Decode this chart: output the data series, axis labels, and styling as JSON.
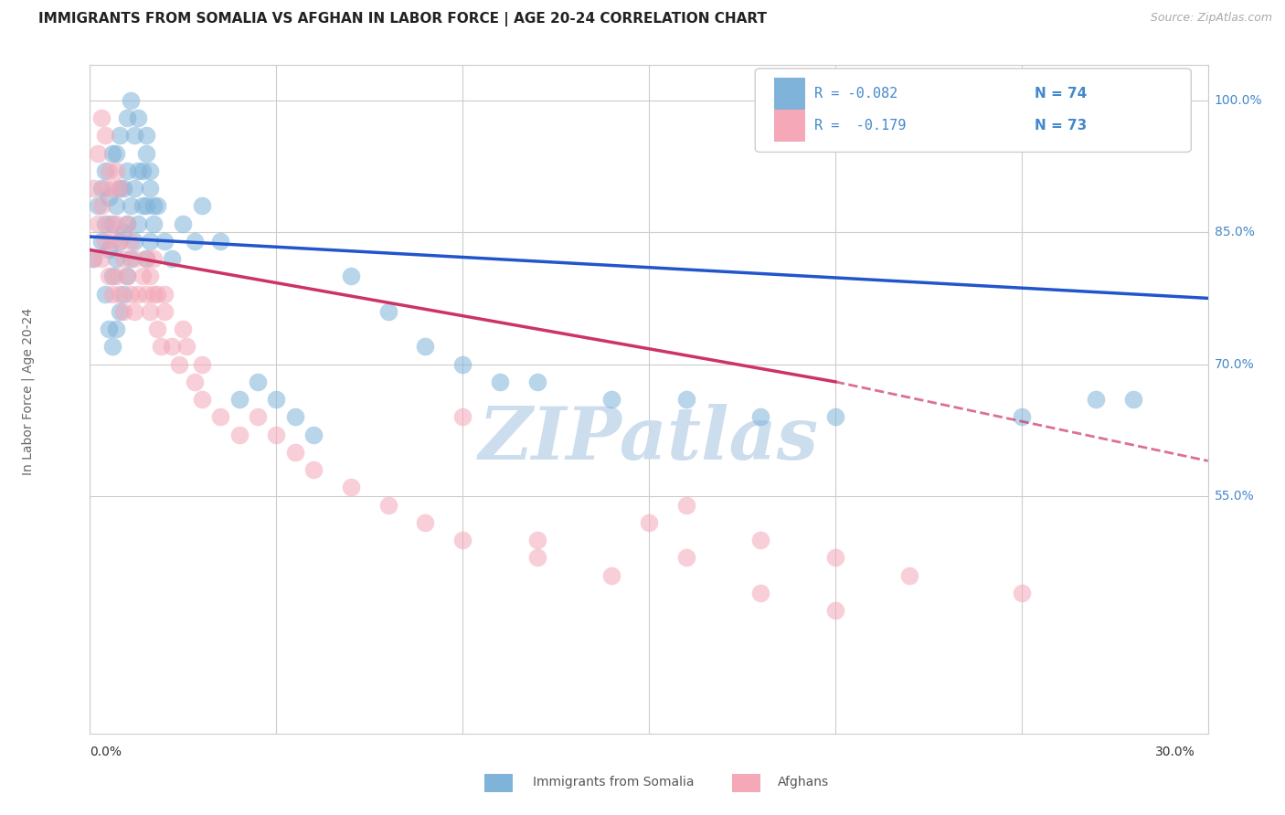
{
  "title": "IMMIGRANTS FROM SOMALIA VS AFGHAN IN LABOR FORCE | AGE 20-24 CORRELATION CHART",
  "source": "Source: ZipAtlas.com",
  "ylabel": "In Labor Force | Age 20-24",
  "legend_somalia_R": "R = -0.082",
  "legend_somalia_N": "N = 74",
  "legend_afghan_R": "R =  -0.179",
  "legend_afghan_N": "N = 73",
  "legend_somalia_label": "Immigrants from Somalia",
  "legend_afghan_label": "Afghans",
  "somalia_color": "#7fb3d9",
  "afghan_color": "#f4a8b8",
  "trend_somalia_color": "#2255cc",
  "trend_afghan_color": "#cc3366",
  "watermark_color": "#ccdded",
  "background_color": "#ffffff",
  "grid_color": "#cccccc",
  "right_axis_color": "#4488cc",
  "xmin": 0.0,
  "xmax": 0.3,
  "ymin": 0.28,
  "ymax": 1.04,
  "somalia_x": [
    0.001,
    0.002,
    0.003,
    0.003,
    0.004,
    0.004,
    0.004,
    0.005,
    0.005,
    0.005,
    0.006,
    0.006,
    0.006,
    0.006,
    0.007,
    0.007,
    0.007,
    0.007,
    0.008,
    0.008,
    0.008,
    0.008,
    0.009,
    0.009,
    0.009,
    0.01,
    0.01,
    0.01,
    0.011,
    0.011,
    0.012,
    0.012,
    0.013,
    0.013,
    0.014,
    0.015,
    0.015,
    0.015,
    0.016,
    0.016,
    0.017,
    0.018,
    0.02,
    0.022,
    0.025,
    0.028,
    0.03,
    0.035,
    0.04,
    0.045,
    0.05,
    0.055,
    0.06,
    0.07,
    0.08,
    0.09,
    0.1,
    0.11,
    0.12,
    0.14,
    0.16,
    0.18,
    0.2,
    0.25,
    0.27,
    0.01,
    0.011,
    0.012,
    0.013,
    0.014,
    0.015,
    0.016,
    0.017,
    0.28
  ],
  "somalia_y": [
    0.82,
    0.88,
    0.84,
    0.9,
    0.78,
    0.86,
    0.92,
    0.74,
    0.83,
    0.89,
    0.72,
    0.8,
    0.86,
    0.94,
    0.74,
    0.82,
    0.88,
    0.94,
    0.76,
    0.84,
    0.9,
    0.96,
    0.78,
    0.85,
    0.9,
    0.8,
    0.86,
    0.92,
    0.82,
    0.88,
    0.84,
    0.9,
    0.86,
    0.92,
    0.88,
    0.82,
    0.88,
    0.94,
    0.84,
    0.9,
    0.86,
    0.88,
    0.84,
    0.82,
    0.86,
    0.84,
    0.88,
    0.84,
    0.66,
    0.68,
    0.66,
    0.64,
    0.62,
    0.8,
    0.76,
    0.72,
    0.7,
    0.68,
    0.68,
    0.66,
    0.66,
    0.64,
    0.64,
    0.64,
    0.66,
    0.98,
    1.0,
    0.96,
    0.98,
    0.92,
    0.96,
    0.92,
    0.88,
    0.66
  ],
  "afghan_x": [
    0.001,
    0.001,
    0.002,
    0.002,
    0.003,
    0.003,
    0.003,
    0.004,
    0.004,
    0.004,
    0.005,
    0.005,
    0.005,
    0.006,
    0.006,
    0.006,
    0.007,
    0.007,
    0.007,
    0.008,
    0.008,
    0.008,
    0.009,
    0.009,
    0.01,
    0.01,
    0.011,
    0.011,
    0.012,
    0.012,
    0.013,
    0.014,
    0.015,
    0.016,
    0.017,
    0.018,
    0.019,
    0.02,
    0.022,
    0.024,
    0.026,
    0.028,
    0.03,
    0.035,
    0.04,
    0.045,
    0.05,
    0.055,
    0.06,
    0.07,
    0.08,
    0.09,
    0.1,
    0.12,
    0.14,
    0.16,
    0.18,
    0.2,
    0.015,
    0.016,
    0.017,
    0.018,
    0.1,
    0.02,
    0.025,
    0.03,
    0.12,
    0.15,
    0.16,
    0.18,
    0.2,
    0.22,
    0.25
  ],
  "afghan_y": [
    0.82,
    0.9,
    0.86,
    0.94,
    0.82,
    0.88,
    0.98,
    0.84,
    0.9,
    0.96,
    0.8,
    0.86,
    0.92,
    0.78,
    0.84,
    0.9,
    0.8,
    0.86,
    0.92,
    0.78,
    0.84,
    0.9,
    0.76,
    0.82,
    0.8,
    0.86,
    0.78,
    0.84,
    0.76,
    0.82,
    0.78,
    0.8,
    0.78,
    0.76,
    0.78,
    0.74,
    0.72,
    0.76,
    0.72,
    0.7,
    0.72,
    0.68,
    0.66,
    0.64,
    0.62,
    0.64,
    0.62,
    0.6,
    0.58,
    0.56,
    0.54,
    0.52,
    0.5,
    0.48,
    0.46,
    0.48,
    0.44,
    0.42,
    0.82,
    0.8,
    0.82,
    0.78,
    0.64,
    0.78,
    0.74,
    0.7,
    0.5,
    0.52,
    0.54,
    0.5,
    0.48,
    0.46,
    0.44
  ]
}
